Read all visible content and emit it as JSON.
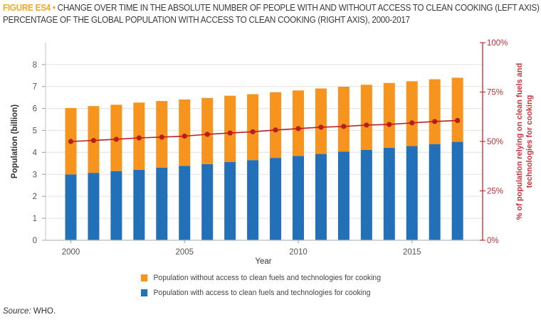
{
  "figure": {
    "label": "FIGURE ES4",
    "bullet": "•",
    "title_line1": "CHANGE OVER TIME IN THE ABSOLUTE NUMBER OF PEOPLE WITH AND WITHOUT ACCESS TO CLEAN COOKING (LEFT AXIS) AND",
    "title_line2": "PERCENTAGE OF THE GLOBAL POPULATION WITH ACCESS TO CLEAN COOKING (RIGHT AXIS), 2000-2017"
  },
  "source": {
    "label": "Source:",
    "text": "WHO."
  },
  "colors": {
    "without_access": "#f7941d",
    "with_access": "#2271b8",
    "share_line": "#b81d22",
    "right_axis": "#c0393f",
    "grid": "#e6e6e6",
    "left_axis": "#cccccc"
  },
  "chart_data": {
    "type": "bar",
    "stacked": true,
    "title": "CHANGE OVER TIME IN THE ABSOLUTE NUMBER OF PEOPLE WITH AND WITHOUT ACCESS TO CLEAN COOKING (LEFT AXIS) AND PERCENTAGE OF THE GLOBAL POPULATION WITH ACCESS TO CLEAN COOKING (RIGHT AXIS), 2000-2017",
    "xlabel": "Year",
    "ylabel": "Population (billion)",
    "y2label": "% of population relying on clean fuels and technologies for cooking",
    "y2label_lines": [
      "% of population relying on clean fuels and",
      "technologies for cooking"
    ],
    "categories": [
      2000,
      2001,
      2002,
      2003,
      2004,
      2005,
      2006,
      2007,
      2008,
      2009,
      2010,
      2011,
      2012,
      2013,
      2014,
      2015,
      2016,
      2017
    ],
    "x_tick_labels": [
      "2000",
      "2005",
      "2010",
      "2015"
    ],
    "x_tick_years": [
      2000,
      2005,
      2010,
      2015
    ],
    "ylim": [
      0,
      9
    ],
    "y_ticks": [
      0,
      1,
      2,
      3,
      4,
      5,
      6,
      7,
      8
    ],
    "y2lim": [
      0,
      100
    ],
    "y2_ticks": [
      0,
      25,
      50,
      75,
      100
    ],
    "y2_tick_labels": [
      "0%",
      "25%",
      "50%",
      "75%",
      "100%"
    ],
    "grid": true,
    "legend_position": "bottom",
    "series": [
      {
        "name": "Population with access to clean fuels and technologies for cooking",
        "type": "bar",
        "axis": "left",
        "values": [
          3.0,
          3.07,
          3.15,
          3.21,
          3.31,
          3.39,
          3.47,
          3.57,
          3.65,
          3.75,
          3.84,
          3.93,
          4.04,
          4.12,
          4.21,
          4.29,
          4.38,
          4.48
        ]
      },
      {
        "name": "Population without access to clean fuels and technologies for cooking",
        "type": "bar",
        "axis": "left",
        "values": [
          3.02,
          3.04,
          3.02,
          3.06,
          3.03,
          3.02,
          3.01,
          3.01,
          3.0,
          2.99,
          2.98,
          2.98,
          2.95,
          2.96,
          2.95,
          2.95,
          2.95,
          2.92
        ]
      },
      {
        "name": "% of population relying on clean fuels and technologies for cooking",
        "type": "line",
        "axis": "right",
        "values": [
          50.0,
          50.5,
          51.1,
          51.8,
          52.2,
          52.7,
          53.6,
          54.3,
          54.9,
          55.8,
          56.5,
          57.2,
          57.6,
          58.3,
          58.6,
          59.4,
          60.1,
          60.6
        ]
      }
    ],
    "legend": [
      "Population without access to clean fuels and technologies for cooking",
      "Population with access to clean fuels and technologies for cooking"
    ]
  }
}
